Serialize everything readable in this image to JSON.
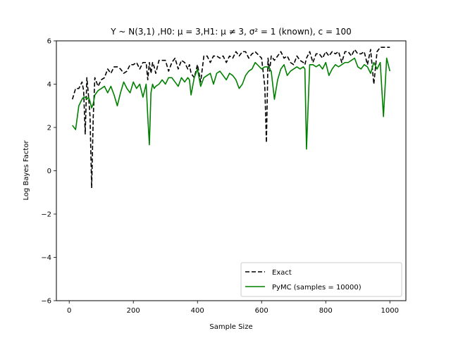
{
  "chart_data": {
    "type": "line",
    "title": "Y ~ N(3,1) ,H0: μ = 3,H1: μ ≠ 3, σ² = 1 (known), c = 100",
    "xlabel": "Sample Size",
    "ylabel": "Log Bayes Factor",
    "xlim": [
      -40,
      1050
    ],
    "ylim": [
      -6,
      6
    ],
    "xticks": [
      0,
      200,
      400,
      600,
      800,
      1000
    ],
    "yticks": [
      -6,
      -4,
      -2,
      0,
      2,
      4,
      6
    ],
    "grid": false,
    "legend_position": "lower-right",
    "x": [
      10,
      20,
      30,
      40,
      45,
      50,
      55,
      60,
      65,
      70,
      75,
      80,
      90,
      100,
      110,
      120,
      130,
      140,
      150,
      160,
      170,
      180,
      190,
      200,
      210,
      220,
      230,
      240,
      245,
      250,
      255,
      260,
      265,
      270,
      280,
      290,
      300,
      310,
      320,
      330,
      340,
      350,
      360,
      370,
      375,
      380,
      390,
      400,
      410,
      420,
      430,
      440,
      450,
      460,
      470,
      480,
      490,
      500,
      510,
      520,
      530,
      540,
      550,
      560,
      570,
      580,
      600,
      610,
      615,
      620,
      625,
      630,
      640,
      650,
      660,
      670,
      680,
      690,
      700,
      710,
      720,
      730,
      735,
      740,
      750,
      760,
      770,
      780,
      790,
      800,
      810,
      820,
      830,
      840,
      850,
      860,
      870,
      880,
      890,
      900,
      910,
      920,
      930,
      940,
      950,
      960,
      970,
      980,
      990,
      1000
    ],
    "series": [
      {
        "name": "Exact",
        "color": "#000000",
        "dash": "dashed",
        "values": [
          3.3,
          3.8,
          3.8,
          4.1,
          3.7,
          1.7,
          4.3,
          3.5,
          2.5,
          -0.8,
          2.5,
          4.3,
          3.9,
          4.2,
          4.3,
          4.7,
          4.5,
          4.8,
          4.8,
          4.7,
          4.5,
          4.6,
          4.9,
          4.9,
          5.0,
          4.7,
          5.0,
          5.0,
          4.2,
          5.0,
          4.5,
          5.0,
          4.8,
          4.5,
          5.1,
          5.1,
          5.1,
          4.6,
          5.0,
          5.2,
          4.7,
          5.1,
          5.0,
          4.7,
          4.9,
          4.5,
          4.3,
          4.9,
          4.1,
          5.3,
          5.3,
          5.0,
          5.3,
          5.3,
          5.2,
          5.3,
          5.0,
          5.3,
          5.2,
          5.5,
          5.3,
          5.5,
          5.5,
          5.2,
          5.4,
          5.5,
          5.2,
          3.9,
          1.3,
          5.2,
          4.6,
          5.3,
          5.1,
          5.3,
          5.5,
          5.2,
          5.3,
          5.0,
          4.9,
          5.3,
          5.1,
          5.0,
          4.9,
          5.2,
          5.5,
          5.0,
          5.4,
          5.4,
          5.2,
          5.5,
          5.3,
          5.5,
          5.4,
          5.5,
          5.0,
          5.5,
          5.5,
          5.3,
          5.6,
          5.4,
          5.4,
          5.5,
          4.9,
          5.6,
          4.0,
          5.5,
          5.7,
          5.7,
          5.7,
          5.7
        ]
      },
      {
        "name": "PyMC (samples = 10000)",
        "color": "#008000",
        "dash": "solid",
        "values": [
          2.1,
          1.9,
          3.0,
          3.3,
          3.4,
          3.4,
          3.3,
          3.4,
          3.2,
          2.9,
          3.1,
          3.5,
          3.7,
          3.8,
          3.9,
          3.6,
          3.9,
          3.5,
          3.0,
          3.6,
          4.1,
          3.8,
          3.6,
          4.1,
          3.8,
          4.0,
          3.4,
          4.0,
          2.5,
          1.2,
          3.6,
          4.0,
          3.8,
          3.9,
          4.0,
          4.2,
          4.0,
          4.3,
          4.3,
          4.1,
          3.9,
          4.3,
          4.1,
          4.3,
          4.2,
          3.5,
          4.3,
          4.7,
          3.9,
          4.3,
          4.4,
          4.5,
          4.0,
          4.5,
          4.6,
          4.4,
          4.2,
          4.5,
          4.4,
          4.2,
          3.8,
          4.0,
          4.4,
          4.6,
          4.7,
          5.0,
          4.7,
          4.8,
          4.8,
          4.8,
          4.7,
          4.6,
          3.3,
          4.2,
          4.7,
          4.9,
          4.4,
          4.6,
          4.7,
          4.8,
          4.7,
          4.8,
          4.7,
          1.0,
          4.9,
          4.9,
          4.8,
          4.9,
          4.7,
          5.0,
          4.4,
          4.7,
          4.9,
          4.8,
          4.9,
          5.0,
          5.0,
          5.1,
          5.2,
          4.8,
          4.7,
          4.9,
          4.8,
          4.5,
          5.0,
          4.7,
          5.0,
          2.5,
          5.2,
          4.6
        ]
      }
    ]
  }
}
